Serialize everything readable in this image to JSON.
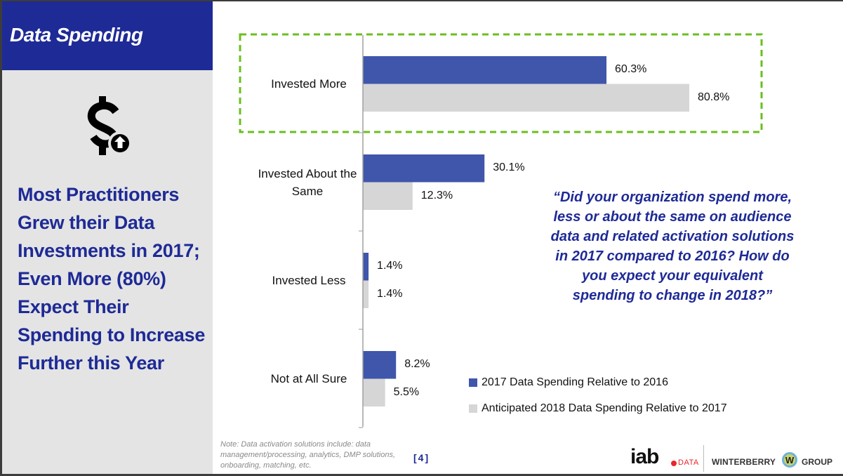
{
  "header": {
    "title": "Data Spending",
    "icon": "dollar-up-icon",
    "brand_color": "#1e2a96"
  },
  "headline": "Most Practitioners Grew their Data Investments in 2017; Even More (80%) Expect Their Spending to Increase Further this Year",
  "quote": "“Did your organization spend more, less or about the same on audience data and related activation solutions in 2017 compared to 2016? How do you expect your equivalent spending to change in 2018?”",
  "note": "Note: Data activation solutions include: data management/processing, analytics, DMP solutions, onboarding, matching, etc.",
  "page_number": "[4]",
  "logos": {
    "iab": "iab",
    "iab_sub": "DATA",
    "winterberry": "WINTERBERRY",
    "winterberry_mark": "W",
    "group": "GROUP"
  },
  "chart_data": {
    "type": "bar",
    "orientation": "horizontal",
    "categories": [
      "Invested More",
      "Invested About the Same",
      "Invested Less",
      "Not at All Sure"
    ],
    "series": [
      {
        "name": "2017 Data Spending Relative to 2016",
        "color": "#3f56ab",
        "values": [
          60.3,
          30.1,
          1.4,
          8.2
        ],
        "labels": [
          "60.3%",
          "30.1%",
          "1.4%",
          "8.2%"
        ]
      },
      {
        "name": "Anticipated 2018 Data Spending Relative to 2017",
        "color": "#d6d6d6",
        "values": [
          80.8,
          12.3,
          1.4,
          5.5
        ],
        "labels": [
          "80.8%",
          "12.3%",
          "1.4%",
          "5.5%"
        ]
      }
    ],
    "xlim": [
      0,
      100
    ],
    "unit": "%",
    "grid": false,
    "legend_position": "bottom-right",
    "highlight": {
      "category": "Invested More",
      "color": "#6abf1f"
    }
  }
}
